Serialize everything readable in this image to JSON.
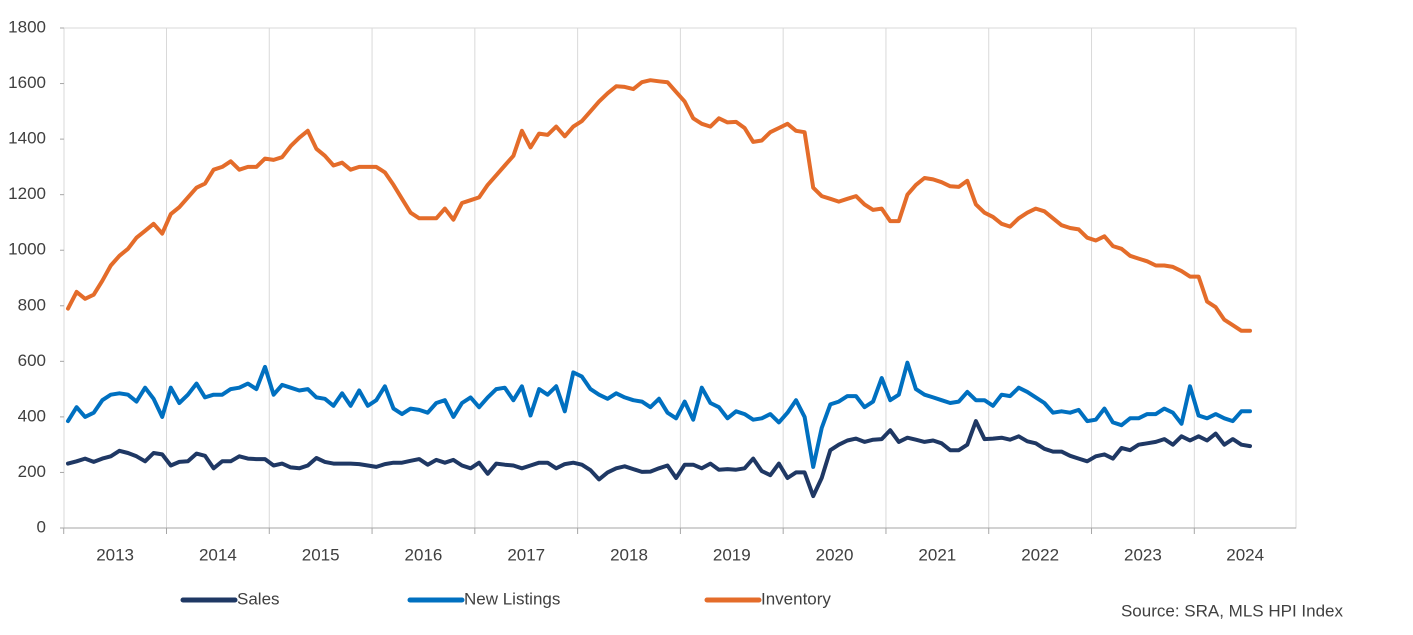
{
  "chart_data": {
    "type": "line",
    "source": "Source: SRA, MLS HPI Index",
    "categories": [
      "2013",
      null,
      null,
      null,
      null,
      null,
      null,
      null,
      null,
      null,
      null,
      null,
      "2014",
      null,
      null,
      null,
      null,
      null,
      null,
      null,
      null,
      null,
      null,
      null,
      "2015",
      null,
      null,
      null,
      null,
      null,
      null,
      null,
      null,
      null,
      null,
      null,
      "2016",
      null,
      null,
      null,
      null,
      null,
      null,
      null,
      null,
      null,
      null,
      null,
      "2017",
      null,
      null,
      null,
      null,
      null,
      null,
      null,
      null,
      null,
      null,
      null,
      "2018",
      null,
      null,
      null,
      null,
      null,
      null,
      null,
      null,
      null,
      null,
      null,
      "2019",
      null,
      null,
      null,
      null,
      null,
      null,
      null,
      null,
      null,
      null,
      null,
      "2020",
      null,
      null,
      null,
      null,
      null,
      null,
      null,
      null,
      null,
      null,
      null,
      "2021",
      null,
      null,
      null,
      null,
      null,
      null,
      null,
      null,
      null,
      null,
      null,
      "2022",
      null,
      null,
      null,
      null,
      null,
      null,
      null,
      null,
      null,
      null,
      null,
      "2023",
      null,
      null,
      null,
      null,
      null,
      null,
      null,
      null,
      null,
      null,
      null,
      "2024",
      null,
      null,
      null,
      null,
      null,
      null
    ],
    "series": [
      {
        "name": "Sales",
        "color": "#1f3864",
        "values": [
          232,
          240,
          250,
          238,
          250,
          258,
          278,
          270,
          258,
          240,
          270,
          265,
          225,
          238,
          240,
          268,
          260,
          215,
          240,
          240,
          258,
          250,
          248,
          248,
          225,
          232,
          218,
          215,
          225,
          252,
          238,
          232,
          232,
          232,
          230,
          225,
          220,
          230,
          235,
          235,
          242,
          248,
          228,
          245,
          235,
          245,
          225,
          215,
          235,
          195,
          232,
          228,
          225,
          215,
          225,
          235,
          235,
          215,
          230,
          235,
          228,
          208,
          175,
          200,
          215,
          222,
          212,
          202,
          203,
          215,
          225,
          180,
          228,
          228,
          215,
          232,
          210,
          212,
          210,
          215,
          250,
          205,
          190,
          232,
          180,
          200,
          200,
          115,
          180,
          280,
          300,
          315,
          322,
          310,
          318,
          320,
          352,
          310,
          325,
          318,
          310,
          315,
          305,
          280,
          280,
          300,
          385,
          320,
          322,
          325,
          318,
          330,
          312,
          305,
          285,
          275,
          275,
          260,
          250,
          240,
          258,
          265,
          250,
          288,
          280,
          300,
          305,
          310,
          320,
          300,
          330,
          315,
          330,
          315,
          340,
          300,
          320,
          300,
          295
        ]
      },
      {
        "name": "New Listings",
        "color": "#0070c0",
        "values": [
          385,
          435,
          400,
          415,
          460,
          480,
          485,
          480,
          455,
          505,
          465,
          400,
          505,
          450,
          480,
          520,
          470,
          480,
          480,
          500,
          505,
          520,
          500,
          580,
          480,
          515,
          505,
          495,
          500,
          470,
          465,
          440,
          485,
          440,
          495,
          440,
          460,
          510,
          430,
          410,
          430,
          425,
          415,
          450,
          460,
          400,
          450,
          470,
          435,
          470,
          500,
          505,
          460,
          510,
          405,
          500,
          480,
          510,
          420,
          560,
          545,
          500,
          480,
          465,
          485,
          470,
          460,
          455,
          435,
          465,
          415,
          395,
          455,
          390,
          505,
          450,
          435,
          395,
          420,
          410,
          390,
          395,
          410,
          380,
          415,
          460,
          400,
          220,
          360,
          445,
          455,
          475,
          475,
          435,
          455,
          540,
          460,
          480,
          595,
          500,
          480,
          470,
          460,
          450,
          455,
          490,
          460,
          460,
          440,
          480,
          475,
          505,
          490,
          470,
          450,
          415,
          420,
          415,
          425,
          385,
          390,
          430,
          380,
          370,
          395,
          395,
          410,
          410,
          430,
          415,
          375,
          510,
          405,
          395,
          410,
          395,
          385,
          420,
          420
        ]
      },
      {
        "name": "Inventory",
        "color": "#e46c2a",
        "values": [
          790,
          850,
          825,
          840,
          890,
          945,
          980,
          1005,
          1045,
          1070,
          1095,
          1060,
          1130,
          1155,
          1190,
          1225,
          1240,
          1290,
          1300,
          1320,
          1290,
          1300,
          1300,
          1330,
          1325,
          1335,
          1375,
          1405,
          1430,
          1365,
          1340,
          1305,
          1315,
          1290,
          1300,
          1300,
          1300,
          1280,
          1235,
          1185,
          1135,
          1115,
          1115,
          1115,
          1150,
          1110,
          1170,
          1180,
          1190,
          1235,
          1270,
          1305,
          1340,
          1430,
          1370,
          1420,
          1415,
          1445,
          1410,
          1445,
          1465,
          1500,
          1535,
          1565,
          1590,
          1588,
          1580,
          1605,
          1612,
          1608,
          1605,
          1570,
          1535,
          1475,
          1455,
          1445,
          1475,
          1460,
          1462,
          1440,
          1390,
          1395,
          1425,
          1440,
          1455,
          1430,
          1425,
          1225,
          1195,
          1185,
          1175,
          1185,
          1195,
          1165,
          1145,
          1150,
          1105,
          1105,
          1200,
          1235,
          1260,
          1255,
          1245,
          1230,
          1228,
          1250,
          1165,
          1135,
          1120,
          1095,
          1085,
          1115,
          1135,
          1150,
          1140,
          1115,
          1090,
          1080,
          1075,
          1045,
          1035,
          1050,
          1015,
          1005,
          980,
          970,
          960,
          945,
          945,
          940,
          925,
          905,
          905,
          815,
          795,
          750,
          730,
          710,
          710
        ]
      }
    ],
    "ylim": [
      0,
      1800
    ],
    "yticks": [
      0,
      200,
      400,
      600,
      800,
      1000,
      1200,
      1400,
      1600,
      1800
    ],
    "grid": false
  }
}
